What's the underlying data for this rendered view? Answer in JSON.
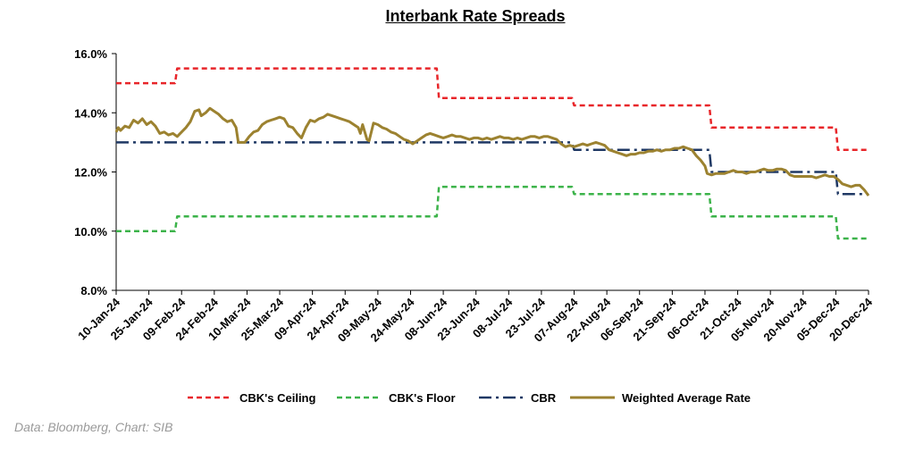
{
  "source_note": "Data: Bloomberg, Chart: SIB",
  "chart_data": {
    "type": "line",
    "title": "Interbank Rate Spreads",
    "xlabel": "",
    "ylabel": "",
    "ylim": [
      8.0,
      16.0
    ],
    "y_ticks": [
      "8.0%",
      "10.0%",
      "12.0%",
      "14.0%",
      "16.0%"
    ],
    "x_tick_labels": [
      "10-Jan-24",
      "25-Jan-24",
      "09-Feb-24",
      "24-Feb-24",
      "10-Mar-24",
      "25-Mar-24",
      "09-Apr-24",
      "24-Apr-24",
      "09-May-24",
      "24-May-24",
      "08-Jun-24",
      "23-Jun-24",
      "08-Jul-24",
      "23-Jul-24",
      "07-Aug-24",
      "22-Aug-24",
      "06-Sep-24",
      "21-Sep-24",
      "06-Oct-24",
      "21-Oct-24",
      "05-Nov-24",
      "20-Nov-24",
      "05-Dec-24",
      "20-Dec-24"
    ],
    "grid": false,
    "legend_position": "bottom",
    "series": [
      {
        "name": "CBK's Ceiling",
        "color": "#e8262a",
        "style": "dashed",
        "points": [
          [
            "10-Jan-24",
            15.0
          ],
          [
            "06-Feb-24",
            15.0
          ],
          [
            "07-Feb-24",
            15.5
          ],
          [
            "05-Jun-24",
            15.5
          ],
          [
            "06-Jun-24",
            14.5
          ],
          [
            "06-Aug-24",
            14.5
          ],
          [
            "07-Aug-24",
            14.25
          ],
          [
            "08-Oct-24",
            14.25
          ],
          [
            "09-Oct-24",
            13.5
          ],
          [
            "05-Dec-24",
            13.5
          ],
          [
            "06-Dec-24",
            12.75
          ],
          [
            "20-Dec-24",
            12.75
          ]
        ]
      },
      {
        "name": "CBK's Floor",
        "color": "#3cb34a",
        "style": "dashed",
        "points": [
          [
            "10-Jan-24",
            10.0
          ],
          [
            "06-Feb-24",
            10.0
          ],
          [
            "07-Feb-24",
            10.5
          ],
          [
            "05-Jun-24",
            10.5
          ],
          [
            "06-Jun-24",
            11.5
          ],
          [
            "06-Aug-24",
            11.5
          ],
          [
            "07-Aug-24",
            11.25
          ],
          [
            "08-Oct-24",
            11.25
          ],
          [
            "09-Oct-24",
            10.5
          ],
          [
            "05-Dec-24",
            10.5
          ],
          [
            "06-Dec-24",
            9.75
          ],
          [
            "20-Dec-24",
            9.75
          ]
        ]
      },
      {
        "name": "CBR",
        "color": "#1f3864",
        "style": "dashdot",
        "points": [
          [
            "10-Jan-24",
            13.0
          ],
          [
            "06-Aug-24",
            13.0
          ],
          [
            "07-Aug-24",
            12.75
          ],
          [
            "08-Oct-24",
            12.75
          ],
          [
            "09-Oct-24",
            12.0
          ],
          [
            "05-Dec-24",
            12.0
          ],
          [
            "06-Dec-24",
            11.25
          ],
          [
            "20-Dec-24",
            11.25
          ]
        ]
      },
      {
        "name": "Weighted Average Rate",
        "color": "#9c8230",
        "style": "solid",
        "points": [
          [
            "10-Jan-24",
            13.35
          ],
          [
            "11-Jan-24",
            13.5
          ],
          [
            "12-Jan-24",
            13.4
          ],
          [
            "14-Jan-24",
            13.55
          ],
          [
            "16-Jan-24",
            13.5
          ],
          [
            "18-Jan-24",
            13.75
          ],
          [
            "20-Jan-24",
            13.65
          ],
          [
            "22-Jan-24",
            13.8
          ],
          [
            "24-Jan-24",
            13.6
          ],
          [
            "26-Jan-24",
            13.7
          ],
          [
            "28-Jan-24",
            13.55
          ],
          [
            "30-Jan-24",
            13.3
          ],
          [
            "01-Feb-24",
            13.35
          ],
          [
            "03-Feb-24",
            13.25
          ],
          [
            "05-Feb-24",
            13.3
          ],
          [
            "07-Feb-24",
            13.2
          ],
          [
            "09-Feb-24",
            13.35
          ],
          [
            "11-Feb-24",
            13.5
          ],
          [
            "13-Feb-24",
            13.7
          ],
          [
            "15-Feb-24",
            14.05
          ],
          [
            "17-Feb-24",
            14.1
          ],
          [
            "18-Feb-24",
            13.9
          ],
          [
            "20-Feb-24",
            14.0
          ],
          [
            "22-Feb-24",
            14.15
          ],
          [
            "24-Feb-24",
            14.05
          ],
          [
            "26-Feb-24",
            13.95
          ],
          [
            "28-Feb-24",
            13.8
          ],
          [
            "01-Mar-24",
            13.7
          ],
          [
            "03-Mar-24",
            13.75
          ],
          [
            "05-Mar-24",
            13.5
          ],
          [
            "06-Mar-24",
            13.0
          ],
          [
            "09-Mar-24",
            13.0
          ],
          [
            "11-Mar-24",
            13.2
          ],
          [
            "13-Mar-24",
            13.35
          ],
          [
            "15-Mar-24",
            13.4
          ],
          [
            "17-Mar-24",
            13.6
          ],
          [
            "19-Mar-24",
            13.7
          ],
          [
            "21-Mar-24",
            13.75
          ],
          [
            "23-Mar-24",
            13.8
          ],
          [
            "25-Mar-24",
            13.85
          ],
          [
            "27-Mar-24",
            13.8
          ],
          [
            "29-Mar-24",
            13.55
          ],
          [
            "31-Mar-24",
            13.5
          ],
          [
            "02-Apr-24",
            13.3
          ],
          [
            "04-Apr-24",
            13.15
          ],
          [
            "06-Apr-24",
            13.5
          ],
          [
            "08-Apr-24",
            13.75
          ],
          [
            "10-Apr-24",
            13.7
          ],
          [
            "12-Apr-24",
            13.8
          ],
          [
            "14-Apr-24",
            13.85
          ],
          [
            "16-Apr-24",
            13.95
          ],
          [
            "18-Apr-24",
            13.9
          ],
          [
            "20-Apr-24",
            13.85
          ],
          [
            "22-Apr-24",
            13.8
          ],
          [
            "24-Apr-24",
            13.75
          ],
          [
            "26-Apr-24",
            13.7
          ],
          [
            "28-Apr-24",
            13.6
          ],
          [
            "30-Apr-24",
            13.5
          ],
          [
            "01-May-24",
            13.3
          ],
          [
            "02-May-24",
            13.6
          ],
          [
            "04-May-24",
            13.1
          ],
          [
            "05-May-24",
            13.05
          ],
          [
            "07-May-24",
            13.65
          ],
          [
            "09-May-24",
            13.6
          ],
          [
            "11-May-24",
            13.5
          ],
          [
            "13-May-24",
            13.45
          ],
          [
            "15-May-24",
            13.35
          ],
          [
            "17-May-24",
            13.3
          ],
          [
            "19-May-24",
            13.2
          ],
          [
            "21-May-24",
            13.1
          ],
          [
            "23-May-24",
            13.05
          ],
          [
            "25-May-24",
            12.95
          ],
          [
            "27-May-24",
            13.05
          ],
          [
            "29-May-24",
            13.15
          ],
          [
            "31-May-24",
            13.25
          ],
          [
            "02-Jun-24",
            13.3
          ],
          [
            "04-Jun-24",
            13.25
          ],
          [
            "06-Jun-24",
            13.2
          ],
          [
            "08-Jun-24",
            13.15
          ],
          [
            "10-Jun-24",
            13.2
          ],
          [
            "12-Jun-24",
            13.25
          ],
          [
            "14-Jun-24",
            13.2
          ],
          [
            "16-Jun-24",
            13.2
          ],
          [
            "18-Jun-24",
            13.15
          ],
          [
            "20-Jun-24",
            13.1
          ],
          [
            "22-Jun-24",
            13.15
          ],
          [
            "24-Jun-24",
            13.15
          ],
          [
            "26-Jun-24",
            13.1
          ],
          [
            "28-Jun-24",
            13.15
          ],
          [
            "30-Jun-24",
            13.1
          ],
          [
            "02-Jul-24",
            13.15
          ],
          [
            "04-Jul-24",
            13.2
          ],
          [
            "06-Jul-24",
            13.15
          ],
          [
            "08-Jul-24",
            13.15
          ],
          [
            "10-Jul-24",
            13.1
          ],
          [
            "12-Jul-24",
            13.15
          ],
          [
            "14-Jul-24",
            13.1
          ],
          [
            "16-Jul-24",
            13.15
          ],
          [
            "18-Jul-24",
            13.2
          ],
          [
            "20-Jul-24",
            13.2
          ],
          [
            "22-Jul-24",
            13.15
          ],
          [
            "24-Jul-24",
            13.2
          ],
          [
            "26-Jul-24",
            13.2
          ],
          [
            "28-Jul-24",
            13.15
          ],
          [
            "30-Jul-24",
            13.1
          ],
          [
            "01-Aug-24",
            12.95
          ],
          [
            "03-Aug-24",
            12.85
          ],
          [
            "05-Aug-24",
            12.9
          ],
          [
            "07-Aug-24",
            12.85
          ],
          [
            "09-Aug-24",
            12.9
          ],
          [
            "11-Aug-24",
            12.95
          ],
          [
            "13-Aug-24",
            12.9
          ],
          [
            "15-Aug-24",
            12.95
          ],
          [
            "17-Aug-24",
            13.0
          ],
          [
            "19-Aug-24",
            12.95
          ],
          [
            "21-Aug-24",
            12.9
          ],
          [
            "23-Aug-24",
            12.75
          ],
          [
            "25-Aug-24",
            12.7
          ],
          [
            "27-Aug-24",
            12.65
          ],
          [
            "29-Aug-24",
            12.6
          ],
          [
            "31-Aug-24",
            12.55
          ],
          [
            "02-Sep-24",
            12.6
          ],
          [
            "04-Sep-24",
            12.6
          ],
          [
            "06-Sep-24",
            12.65
          ],
          [
            "08-Sep-24",
            12.65
          ],
          [
            "10-Sep-24",
            12.7
          ],
          [
            "12-Sep-24",
            12.7
          ],
          [
            "14-Sep-24",
            12.75
          ],
          [
            "16-Sep-24",
            12.7
          ],
          [
            "18-Sep-24",
            12.75
          ],
          [
            "20-Sep-24",
            12.75
          ],
          [
            "22-Sep-24",
            12.8
          ],
          [
            "24-Sep-24",
            12.8
          ],
          [
            "26-Sep-24",
            12.85
          ],
          [
            "28-Sep-24",
            12.8
          ],
          [
            "30-Sep-24",
            12.75
          ],
          [
            "02-Oct-24",
            12.55
          ],
          [
            "04-Oct-24",
            12.4
          ],
          [
            "06-Oct-24",
            12.2
          ],
          [
            "07-Oct-24",
            11.95
          ],
          [
            "09-Oct-24",
            11.9
          ],
          [
            "11-Oct-24",
            11.95
          ],
          [
            "13-Oct-24",
            11.95
          ],
          [
            "15-Oct-24",
            11.95
          ],
          [
            "17-Oct-24",
            12.0
          ],
          [
            "19-Oct-24",
            12.05
          ],
          [
            "21-Oct-24",
            12.0
          ],
          [
            "23-Oct-24",
            12.0
          ],
          [
            "25-Oct-24",
            11.95
          ],
          [
            "27-Oct-24",
            12.0
          ],
          [
            "29-Oct-24",
            12.0
          ],
          [
            "31-Oct-24",
            12.05
          ],
          [
            "02-Nov-24",
            12.1
          ],
          [
            "04-Nov-24",
            12.05
          ],
          [
            "06-Nov-24",
            12.05
          ],
          [
            "08-Nov-24",
            12.1
          ],
          [
            "10-Nov-24",
            12.1
          ],
          [
            "12-Nov-24",
            12.05
          ],
          [
            "14-Nov-24",
            11.9
          ],
          [
            "16-Nov-24",
            11.85
          ],
          [
            "18-Nov-24",
            11.85
          ],
          [
            "20-Nov-24",
            11.85
          ],
          [
            "22-Nov-24",
            11.85
          ],
          [
            "24-Nov-24",
            11.85
          ],
          [
            "26-Nov-24",
            11.8
          ],
          [
            "28-Nov-24",
            11.85
          ],
          [
            "30-Nov-24",
            11.9
          ],
          [
            "02-Dec-24",
            11.85
          ],
          [
            "04-Dec-24",
            11.85
          ],
          [
            "06-Dec-24",
            11.75
          ],
          [
            "08-Dec-24",
            11.6
          ],
          [
            "10-Dec-24",
            11.55
          ],
          [
            "12-Dec-24",
            11.5
          ],
          [
            "14-Dec-24",
            11.55
          ],
          [
            "16-Dec-24",
            11.55
          ],
          [
            "18-Dec-24",
            11.4
          ],
          [
            "20-Dec-24",
            11.2
          ]
        ]
      }
    ]
  }
}
